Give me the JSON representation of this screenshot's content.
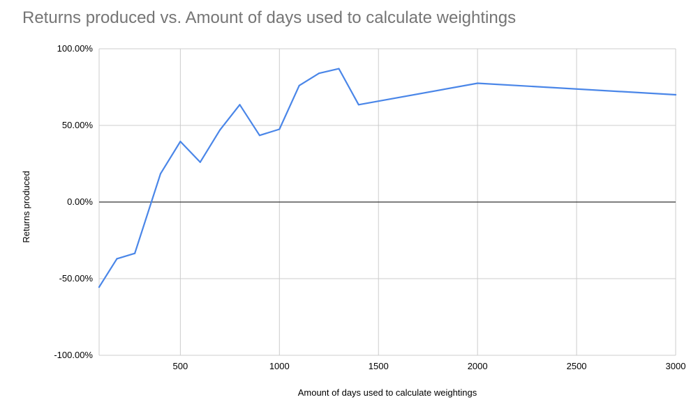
{
  "chart_data": {
    "type": "line",
    "title": "Returns produced vs. Amount of days used to calculate weightings",
    "xlabel": "Amount of days used to calculate weightings",
    "ylabel": "Returns produced",
    "xlim": [
      90,
      3000
    ],
    "ylim": [
      -100,
      100
    ],
    "x_ticks": [
      500,
      1000,
      1500,
      2000,
      2500,
      3000
    ],
    "x_tick_labels": [
      "500",
      "1000",
      "1500",
      "2000",
      "2500",
      "3000"
    ],
    "y_ticks": [
      -100,
      -50,
      0,
      50,
      100
    ],
    "y_tick_labels": [
      "-100.00%",
      "-50.00%",
      "0.00%",
      "50.00%",
      "100.00%"
    ],
    "grid": true,
    "legend": "none",
    "colors": {
      "line": "#4a86e8",
      "grid": "#cccccc",
      "zero_line": "#333333",
      "title": "#757575",
      "text": "#000000"
    },
    "series": [
      {
        "x": [
          90,
          180,
          270,
          400,
          500,
          600,
          700,
          800,
          900,
          1000,
          1100,
          1200,
          1300,
          1400,
          2000,
          3000
        ],
        "values": [
          -55.5,
          -37,
          -33.5,
          18.5,
          39.5,
          26,
          47,
          63.5,
          43.5,
          47.5,
          76,
          84,
          87,
          63.5,
          77.5,
          70
        ]
      }
    ]
  }
}
